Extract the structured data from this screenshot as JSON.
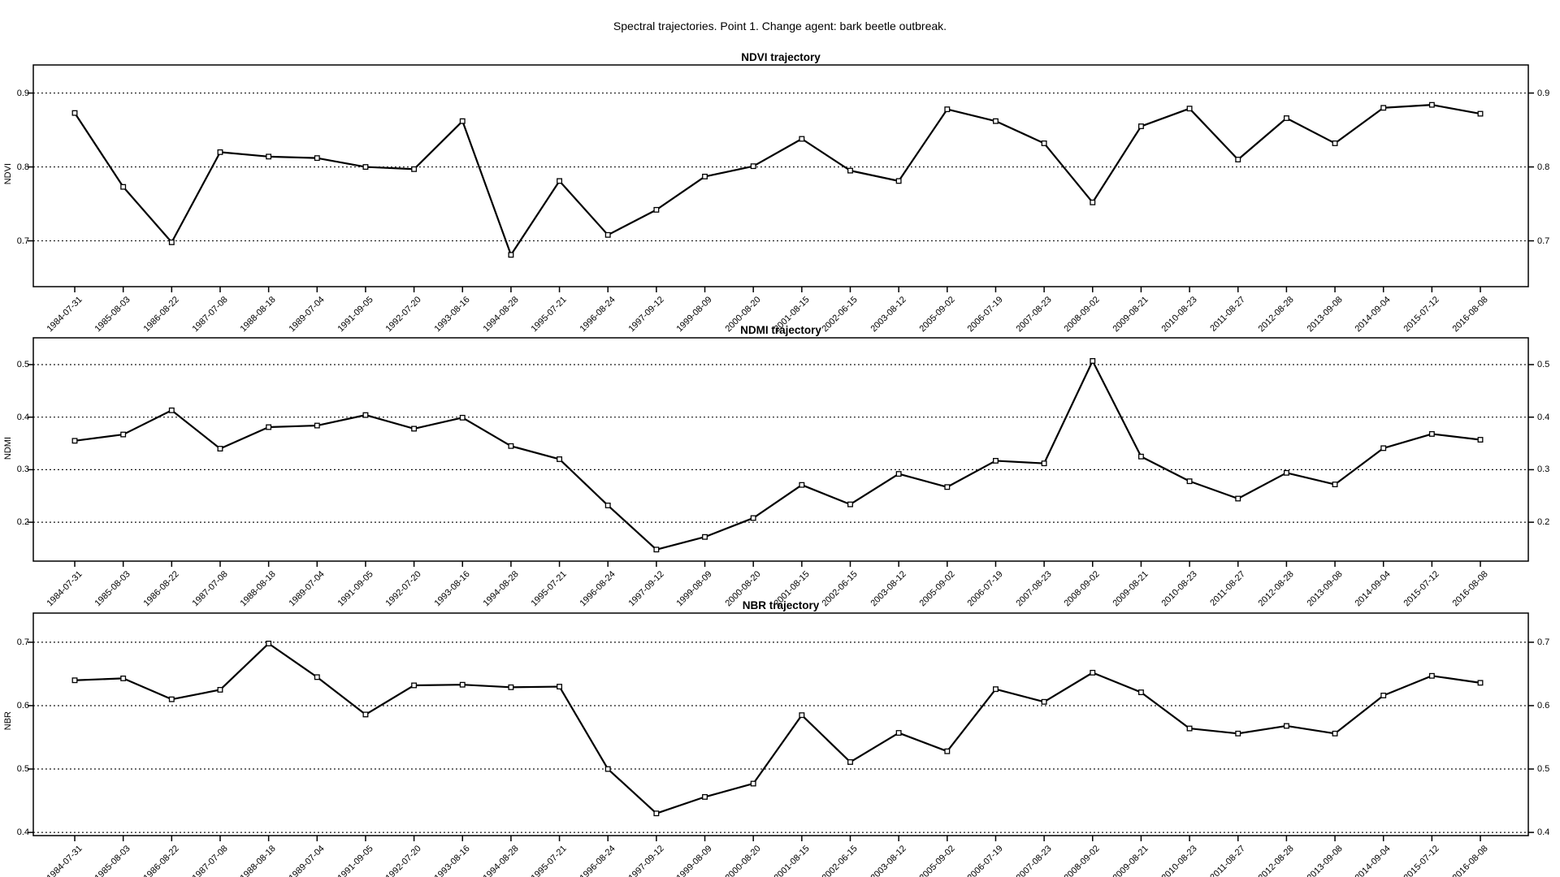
{
  "figure_title": "Spectral trajectories. Point 1. Change agent: bark beetle outbreak.",
  "chart_data": [
    {
      "type": "line",
      "title": "NDVI trajectory",
      "ylabel": "NDVI",
      "series_color": "#000000",
      "marker": "open-square",
      "grid": "horizontal-dotted",
      "legend": "none",
      "categories": [
        "1984-07-31",
        "1985-08-03",
        "1986-08-22",
        "1987-07-08",
        "1988-08-18",
        "1989-07-04",
        "1991-09-05",
        "1992-07-20",
        "1993-08-16",
        "1994-08-28",
        "1995-07-21",
        "1996-08-24",
        "1997-09-12",
        "1999-08-09",
        "2000-08-20",
        "2001-08-15",
        "2002-06-15",
        "2003-08-12",
        "2005-09-02",
        "2006-07-19",
        "2007-08-23",
        "2008-09-02",
        "2009-08-21",
        "2010-08-23",
        "2011-08-27",
        "2012-08-28",
        "2013-09-08",
        "2014-09-04",
        "2015-07-12",
        "2016-08-08"
      ],
      "values": [
        0.873,
        0.773,
        0.698,
        0.82,
        0.814,
        0.812,
        0.8,
        0.797,
        0.862,
        0.681,
        0.781,
        0.708,
        0.742,
        0.787,
        0.801,
        0.838,
        0.795,
        0.781,
        0.878,
        0.862,
        0.832,
        0.752,
        0.855,
        0.879,
        0.81,
        0.866,
        0.832,
        0.88,
        0.884,
        0.872
      ],
      "yticks": [
        0.7,
        0.8,
        0.9
      ],
      "ylim": [
        0.638,
        0.938
      ]
    },
    {
      "type": "line",
      "title": "NDMI trajectory",
      "ylabel": "NDMI",
      "series_color": "#000000",
      "marker": "open-square",
      "grid": "horizontal-dotted",
      "legend": "none",
      "categories": [
        "1984-07-31",
        "1985-08-03",
        "1986-08-22",
        "1987-07-08",
        "1988-08-18",
        "1989-07-04",
        "1991-09-05",
        "1992-07-20",
        "1993-08-16",
        "1994-08-28",
        "1995-07-21",
        "1996-08-24",
        "1997-09-12",
        "1999-08-09",
        "2000-08-20",
        "2001-08-15",
        "2002-06-15",
        "2003-08-12",
        "2005-09-02",
        "2006-07-19",
        "2007-08-23",
        "2008-09-02",
        "2009-08-21",
        "2010-08-23",
        "2011-08-27",
        "2012-08-28",
        "2013-09-08",
        "2014-09-04",
        "2015-07-12",
        "2016-08-08"
      ],
      "values": [
        0.355,
        0.367,
        0.413,
        0.34,
        0.381,
        0.384,
        0.404,
        0.378,
        0.399,
        0.345,
        0.32,
        0.232,
        0.148,
        0.172,
        0.208,
        0.271,
        0.234,
        0.292,
        0.267,
        0.317,
        0.312,
        0.507,
        0.325,
        0.278,
        0.245,
        0.294,
        0.272,
        0.341,
        0.368,
        0.357
      ],
      "yticks": [
        0.2,
        0.3,
        0.4,
        0.5
      ],
      "ylim": [
        0.126,
        0.551
      ]
    },
    {
      "type": "line",
      "title": "NBR trajectory",
      "ylabel": "NBR",
      "series_color": "#000000",
      "marker": "open-square",
      "grid": "horizontal-dotted",
      "legend": "none",
      "categories": [
        "1984-07-31",
        "1985-08-03",
        "1986-08-22",
        "1987-07-08",
        "1988-08-18",
        "1989-07-04",
        "1991-09-05",
        "1992-07-20",
        "1993-08-16",
        "1994-08-28",
        "1995-07-21",
        "1996-08-24",
        "1997-09-12",
        "1999-08-09",
        "2000-08-20",
        "2001-08-15",
        "2002-06-15",
        "2003-08-12",
        "2005-09-02",
        "2006-07-19",
        "2007-08-23",
        "2008-09-02",
        "2009-08-21",
        "2010-08-23",
        "2011-08-27",
        "2012-08-28",
        "2013-09-08",
        "2014-09-04",
        "2015-07-12",
        "2016-08-08"
      ],
      "values": [
        0.64,
        0.643,
        0.61,
        0.625,
        0.698,
        0.645,
        0.586,
        0.632,
        0.633,
        0.629,
        0.63,
        0.5,
        0.43,
        0.456,
        0.477,
        0.585,
        0.511,
        0.557,
        0.528,
        0.626,
        0.606,
        0.652,
        0.621,
        0.564,
        0.556,
        0.568,
        0.556,
        0.616,
        0.647,
        0.636
      ],
      "yticks": [
        0.4,
        0.5,
        0.6,
        0.7
      ],
      "ylim": [
        0.395,
        0.746
      ]
    }
  ]
}
